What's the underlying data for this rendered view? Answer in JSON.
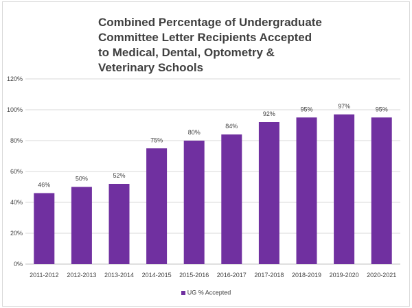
{
  "chart_data": {
    "type": "bar",
    "title": "Combined Percentage of Undergraduate Committee Letter Recipients Accepted to Medical, Dental, Optometry & Veterinary Schools",
    "categories": [
      "2011-2012",
      "2012-2013",
      "2013-2014",
      "2014-2015",
      "2015-2016",
      "2016-2017",
      "2017-2018",
      "2018-2019",
      "2019-2020",
      "2020-2021"
    ],
    "series": [
      {
        "name": "UG % Accepted",
        "values": [
          46,
          50,
          52,
          75,
          80,
          84,
          92,
          95,
          97,
          95
        ],
        "data_labels": [
          "46%",
          "50%",
          "52%",
          "75%",
          "80%",
          "84%",
          "92%",
          "95%",
          "97%",
          "95%"
        ],
        "color": "#7030a0"
      }
    ],
    "yticks": [
      0,
      20,
      40,
      60,
      80,
      100,
      120
    ],
    "ytick_labels": [
      "0%",
      "20%",
      "40%",
      "60%",
      "80%",
      "100%",
      "120%"
    ],
    "ylim": [
      0,
      120
    ],
    "grid": true,
    "legend_position": "bottom",
    "xlabel": "",
    "ylabel": ""
  }
}
